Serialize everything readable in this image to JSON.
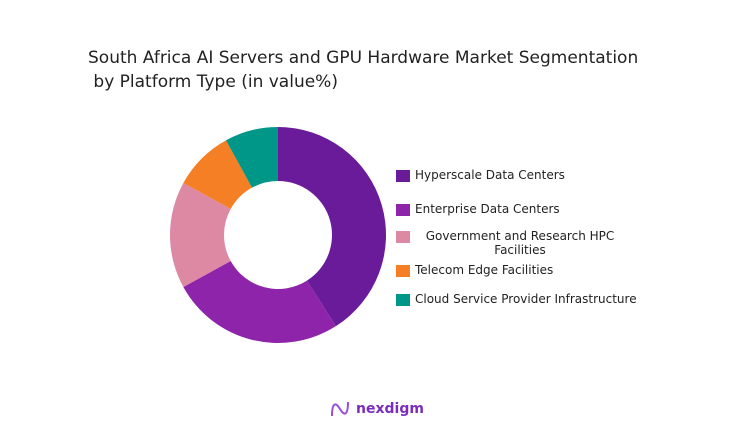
{
  "chart_data": {
    "type": "pie",
    "donut": true,
    "title": "South Africa AI Servers and GPU Hardware Market Segmentation\n by Platform Type (in value%)",
    "categories": [
      "Hyperscale Data Centers",
      "Enterprise Data Centers",
      "Government and Research HPC Facilities",
      "Telecom Edge Facilities",
      "Cloud Service Provider Infrastructure"
    ],
    "values": [
      41,
      26,
      16,
      9,
      8
    ],
    "colors": [
      "#6a1b9a",
      "#8e24aa",
      "#de89a3",
      "#f57f25",
      "#009688"
    ],
    "legend_position": "right"
  },
  "legend_labels": [
    "Hyperscale Data Centers",
    "Enterprise Data Centers",
    "Government and Research HPC Facilities",
    "Telecom Edge Facilities",
    "Cloud Service Provider Infrastructure"
  ],
  "brand": {
    "name": "nexdigm",
    "color": "#7b2cbf"
  }
}
